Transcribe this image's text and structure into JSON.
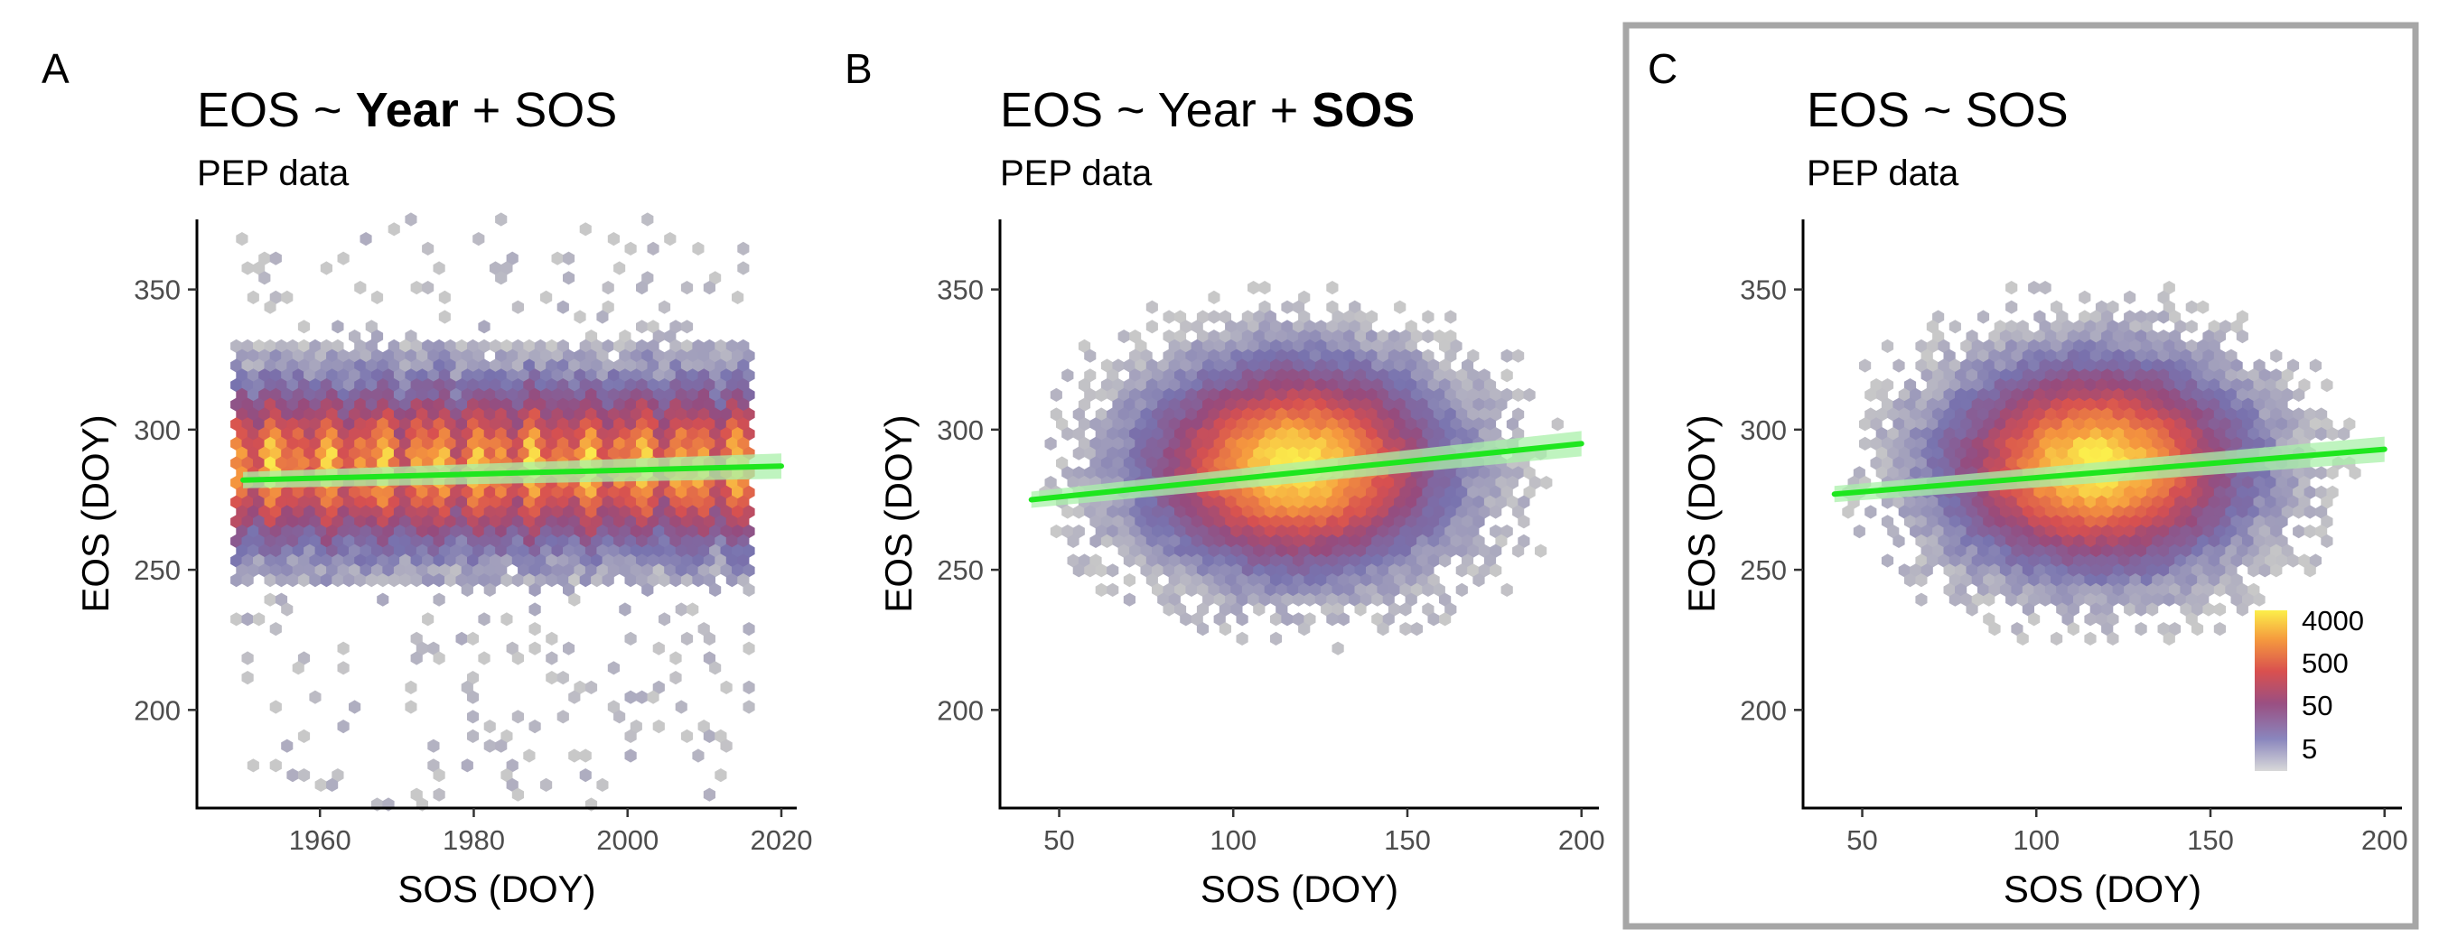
{
  "colors": {
    "fit_line": "#1ee61e",
    "fit_band": "#aaf0aa",
    "highlight_box": "#a6a6a6",
    "scale": [
      "#bdbdbd",
      "#6e6aa8",
      "#a04d7a",
      "#e0524b",
      "#f8963c",
      "#fbf24c"
    ]
  },
  "legend": {
    "labels": [
      "4000",
      "500",
      "50",
      "5"
    ],
    "values": [
      4000,
      500,
      50,
      5
    ],
    "min": 1,
    "max": 6000
  },
  "chart_data": [
    {
      "type": "hexbin-scatter",
      "panel_label": "A",
      "title_parts": [
        {
          "text": "EOS ~ ",
          "bold": false
        },
        {
          "text": "Year",
          "bold": true
        },
        {
          "text": " + SOS",
          "bold": false
        }
      ],
      "subtitle": "PEP data",
      "xlabel": "SOS (DOY)",
      "ylabel": "EOS (DOY)",
      "xlim": [
        1944,
        2022
      ],
      "ylim": [
        165,
        375
      ],
      "xticks": [
        1960,
        1980,
        2000,
        2020
      ],
      "yticks": [
        200,
        250,
        300,
        350
      ],
      "density": {
        "x_range": [
          1950,
          2015
        ],
        "y_center": 287,
        "y_sd": 18,
        "y_range": [
          245,
          330
        ],
        "shape": "uniform-x"
      },
      "fit_line": {
        "x": [
          1950,
          2020
        ],
        "y": [
          282,
          287
        ]
      },
      "highlighted": false
    },
    {
      "type": "hexbin-scatter",
      "panel_label": "B",
      "title_parts": [
        {
          "text": "EOS ~ Year + ",
          "bold": false
        },
        {
          "text": "SOS",
          "bold": true
        }
      ],
      "subtitle": "PEP data",
      "xlabel": "SOS (DOY)",
      "ylabel": "EOS (DOY)",
      "xlim": [
        33,
        205
      ],
      "ylim": [
        165,
        375
      ],
      "xticks": [
        50,
        100,
        150,
        200
      ],
      "yticks": [
        200,
        250,
        300,
        350
      ],
      "density": {
        "x_center": 118,
        "x_sd": 20,
        "y_center": 287,
        "y_sd": 17,
        "x_range": [
          45,
          195
        ],
        "y_range": [
          185,
          355
        ],
        "shape": "ellipse"
      },
      "fit_line": {
        "x": [
          42,
          200
        ],
        "y": [
          275,
          295
        ]
      },
      "highlighted": false
    },
    {
      "type": "hexbin-scatter",
      "panel_label": "C",
      "title_parts": [
        {
          "text": "EOS ~ SOS",
          "bold": false
        }
      ],
      "subtitle": "PEP data",
      "xlabel": "SOS (DOY)",
      "ylabel": "EOS (DOY)",
      "xlim": [
        33,
        205
      ],
      "ylim": [
        165,
        375
      ],
      "xticks": [
        50,
        100,
        150,
        200
      ],
      "yticks": [
        200,
        250,
        300,
        350
      ],
      "density": {
        "x_center": 117,
        "x_sd": 20,
        "y_center": 287,
        "y_sd": 17,
        "x_range": [
          45,
          195
        ],
        "y_range": [
          185,
          355
        ],
        "shape": "ellipse"
      },
      "fit_line": {
        "x": [
          42,
          200
        ],
        "y": [
          277,
          293
        ]
      },
      "highlighted": true,
      "show_legend": true
    }
  ]
}
